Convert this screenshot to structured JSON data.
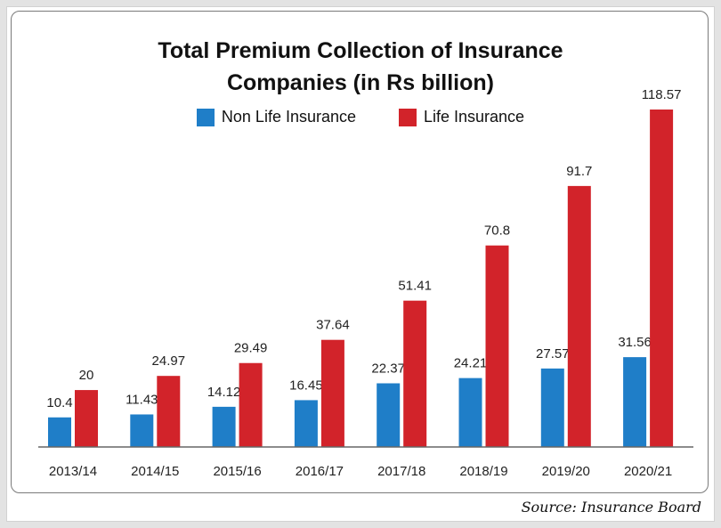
{
  "chart_data": {
    "type": "bar",
    "title_line1": "Total Premium Collection of Insurance",
    "title_line2": "Companies (in Rs billion)",
    "categories": [
      "2013/14",
      "2014/15",
      "2015/16",
      "2016/17",
      "2017/18",
      "2018/19",
      "2019/20",
      "2020/21"
    ],
    "series": [
      {
        "name": "Non Life Insurance",
        "color": "#1f7ec8",
        "values": [
          10.4,
          11.43,
          14.12,
          16.45,
          22.37,
          24.21,
          27.57,
          31.56
        ],
        "labels": [
          "10.4",
          "11.43",
          "14.12",
          "16.45",
          "22.37",
          "24.21",
          "27.57",
          "31.56"
        ]
      },
      {
        "name": "Life Insurance",
        "color": "#d2232a",
        "values": [
          20,
          24.97,
          29.49,
          37.64,
          51.41,
          70.8,
          91.7,
          118.57
        ],
        "labels": [
          "20",
          "24.97",
          "29.49",
          "37.64",
          "51.41",
          "70.8",
          "91.7",
          "118.57"
        ]
      }
    ],
    "ylim": [
      0,
      118.57
    ],
    "grid": false,
    "legend_position": "top-center"
  },
  "source": "Source: Insurance Board"
}
